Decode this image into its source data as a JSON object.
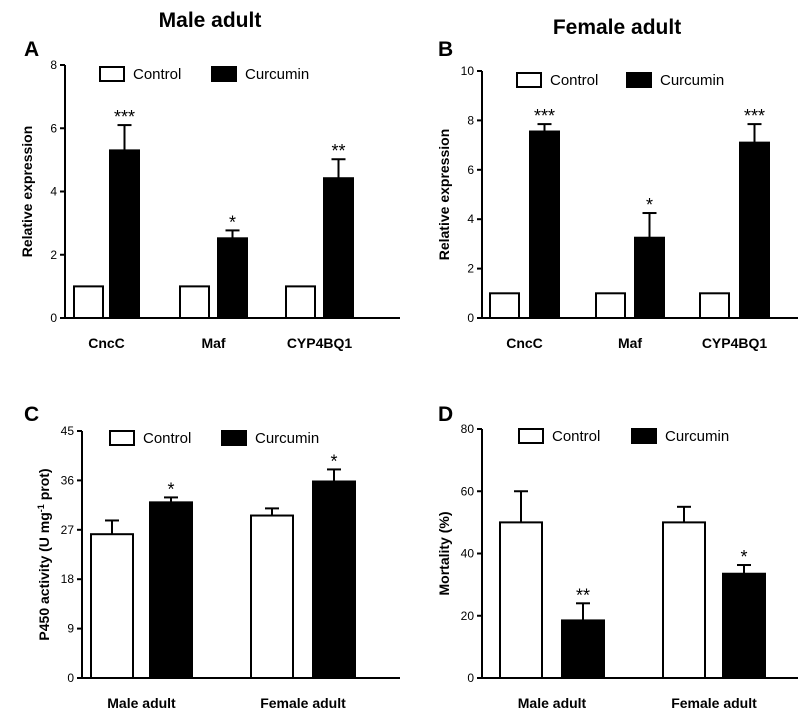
{
  "colors": {
    "control": "#ffffff",
    "treatment": "#000000",
    "stroke": "#000000"
  },
  "chart_data": [
    {
      "id": "A",
      "type": "bar",
      "title": "Male adult",
      "ylabel": "Relative expression",
      "ylim": [
        0,
        8
      ],
      "yticks": [
        "0",
        "2",
        "4",
        "6",
        "8"
      ],
      "categories": [
        "CncC",
        "Maf",
        "CYP4BQ1"
      ],
      "series": [
        {
          "name": "Control",
          "values": [
            1,
            1,
            1
          ],
          "errors": [
            0,
            0,
            0
          ]
        },
        {
          "name": "Curcumin",
          "values": [
            5.3,
            2.52,
            4.42
          ],
          "errors": [
            0.8,
            0.25,
            0.6
          ]
        }
      ],
      "significance": [
        "***",
        "*",
        "**"
      ],
      "legend": "top"
    },
    {
      "id": "B",
      "type": "bar",
      "title": "Female adult",
      "ylabel": "Relative expression",
      "ylim": [
        0,
        10
      ],
      "yticks": [
        "0",
        "2",
        "4",
        "6",
        "8",
        "10"
      ],
      "categories": [
        "CncC",
        "Maf",
        "CYP4BQ1"
      ],
      "series": [
        {
          "name": "Control",
          "values": [
            1,
            1,
            1
          ],
          "errors": [
            0,
            0,
            0
          ]
        },
        {
          "name": "Curcumin",
          "values": [
            7.55,
            3.25,
            7.1
          ],
          "errors": [
            0.3,
            1.0,
            0.75
          ]
        }
      ],
      "significance": [
        "***",
        "*",
        "***"
      ],
      "legend": "top"
    },
    {
      "id": "C",
      "type": "bar",
      "title": "",
      "ylabel_main": "P450 activity (U mg",
      "ylabel_sup": "-1",
      "ylabel_end": " prot)",
      "ylim": [
        0,
        45
      ],
      "yticks": [
        "0",
        "9",
        "18",
        "27",
        "36",
        "45"
      ],
      "categories": [
        "Male adult",
        "Female adult"
      ],
      "series": [
        {
          "name": "Control",
          "values": [
            26.2,
            29.6
          ],
          "errors": [
            2.5,
            1.3
          ]
        },
        {
          "name": "Curcumin",
          "values": [
            32.0,
            35.8
          ],
          "errors": [
            0.9,
            2.2
          ]
        }
      ],
      "significance": [
        "*",
        "*"
      ],
      "legend": "top"
    },
    {
      "id": "D",
      "type": "bar",
      "title": "",
      "ylabel": "Mortality (%)",
      "ylim": [
        0,
        80
      ],
      "yticks": [
        "0",
        "20",
        "40",
        "60",
        "80"
      ],
      "categories": [
        "Male adult",
        "Female adult"
      ],
      "series": [
        {
          "name": "Control",
          "values": [
            50,
            50
          ],
          "errors": [
            10,
            5
          ]
        },
        {
          "name": "Curcumin",
          "values": [
            18.5,
            33.5
          ],
          "errors": [
            5.5,
            2.8
          ]
        }
      ],
      "significance": [
        "**",
        "*"
      ],
      "legend": "top"
    }
  ]
}
